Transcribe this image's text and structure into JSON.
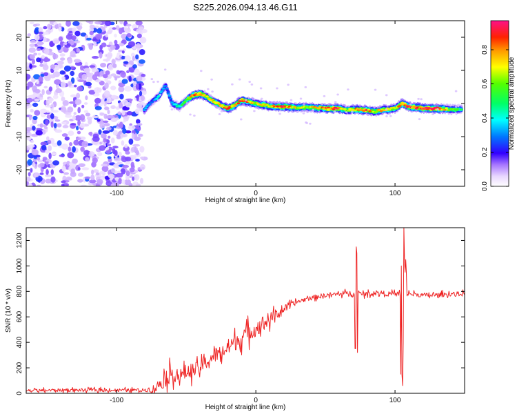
{
  "title": "S225.2026.094.13.46.G11",
  "chart_data": [
    {
      "type": "heatmap",
      "xlabel": "Height of straight line (km)",
      "ylabel": "Frequency (Hz)",
      "xlim": [
        -165,
        150
      ],
      "ylim": [
        -25,
        25
      ],
      "xticks": [
        -100,
        0,
        100
      ],
      "yticks": [
        20,
        10,
        0,
        -10,
        -20
      ],
      "colorbar": {
        "label": "Normalized spectral amplitude",
        "range": [
          0.0,
          0.97
        ],
        "ticks": [
          0.0,
          0.2,
          0.4,
          0.6,
          0.8
        ],
        "tick_labels": [
          "0.0",
          "0.2",
          "0.4",
          "0.6",
          "0.8"
        ]
      },
      "noise_region_x": [
        -165,
        -80
      ],
      "ridge": {
        "x": [
          -80,
          -75,
          -70,
          -65,
          -60,
          -55,
          -50,
          -45,
          -40,
          -35,
          -30,
          -25,
          -20,
          -15,
          -10,
          -5,
          0,
          10,
          20,
          30,
          40,
          50,
          60,
          65,
          70,
          80,
          85,
          90,
          100,
          105,
          110,
          120,
          130,
          140,
          148
        ],
        "freq": [
          -2,
          0.5,
          2,
          5.5,
          0,
          -1,
          1,
          2.5,
          3,
          2,
          0.5,
          -0.5,
          -1.5,
          -0.5,
          1,
          0.5,
          0,
          -0.8,
          -1,
          -1.2,
          -1.2,
          -1.5,
          -1.5,
          -2,
          -1.8,
          -2,
          -2.5,
          -2,
          -1.5,
          0,
          -1,
          -1.5,
          -1.5,
          -1.8,
          -1.8
        ],
        "amplitude": [
          0.35,
          0.25,
          0.4,
          0.3,
          0.35,
          0.45,
          0.6,
          0.85,
          0.8,
          0.7,
          0.75,
          0.7,
          0.9,
          0.75,
          0.85,
          0.8,
          0.7,
          0.75,
          0.85,
          0.7,
          0.7,
          0.85,
          0.9,
          0.6,
          0.8,
          0.85,
          0.7,
          0.8,
          0.7,
          0.9,
          0.85,
          0.95,
          0.95,
          0.6,
          0.5
        ]
      }
    },
    {
      "type": "line",
      "xlabel": "Height of straight line (km)",
      "ylabel": "SNR (10 * v/v)",
      "xlim": [
        -165,
        150
      ],
      "ylim": [
        0,
        1300
      ],
      "xticks": [
        -100,
        0,
        100
      ],
      "yticks": [
        0,
        200,
        400,
        600,
        800,
        1000,
        1200
      ],
      "series": [
        {
          "name": "SNR",
          "color": "#ee2222",
          "x": [
            -165,
            -140,
            -100,
            -80,
            -72,
            -65,
            -60,
            -55,
            -50,
            -45,
            -40,
            -35,
            -30,
            -25,
            -20,
            -15,
            -10,
            -5,
            0,
            5,
            10,
            15,
            20,
            25,
            30,
            40,
            50,
            60,
            70,
            75,
            80,
            90,
            95,
            100,
            105,
            110,
            120,
            130,
            140,
            150
          ],
          "mean": [
            20,
            25,
            25,
            25,
            40,
            120,
            160,
            130,
            170,
            180,
            200,
            250,
            290,
            320,
            360,
            400,
            440,
            480,
            510,
            550,
            580,
            620,
            660,
            690,
            720,
            750,
            770,
            780,
            790,
            780,
            780,
            790,
            780,
            780,
            780,
            780,
            770,
            770,
            780,
            780
          ],
          "noise": [
            20,
            20,
            20,
            20,
            60,
            120,
            110,
            90,
            100,
            100,
            80,
            90,
            90,
            100,
            110,
            110,
            120,
            120,
            100,
            100,
            90,
            60,
            50,
            40,
            30,
            30,
            30,
            30,
            30,
            30,
            30,
            30,
            30,
            30,
            30,
            30,
            30,
            30,
            30,
            30
          ],
          "spikes": [
            {
              "x": 72,
              "values": [
                1100,
                350,
                1150,
                320,
                980
              ]
            },
            {
              "x": 105,
              "values": [
                1120,
                60,
                1000,
                150,
                1270
              ]
            },
            {
              "x": 107,
              "values": [
                1300,
                80,
                950,
                400,
                1050
              ]
            }
          ]
        }
      ]
    }
  ]
}
